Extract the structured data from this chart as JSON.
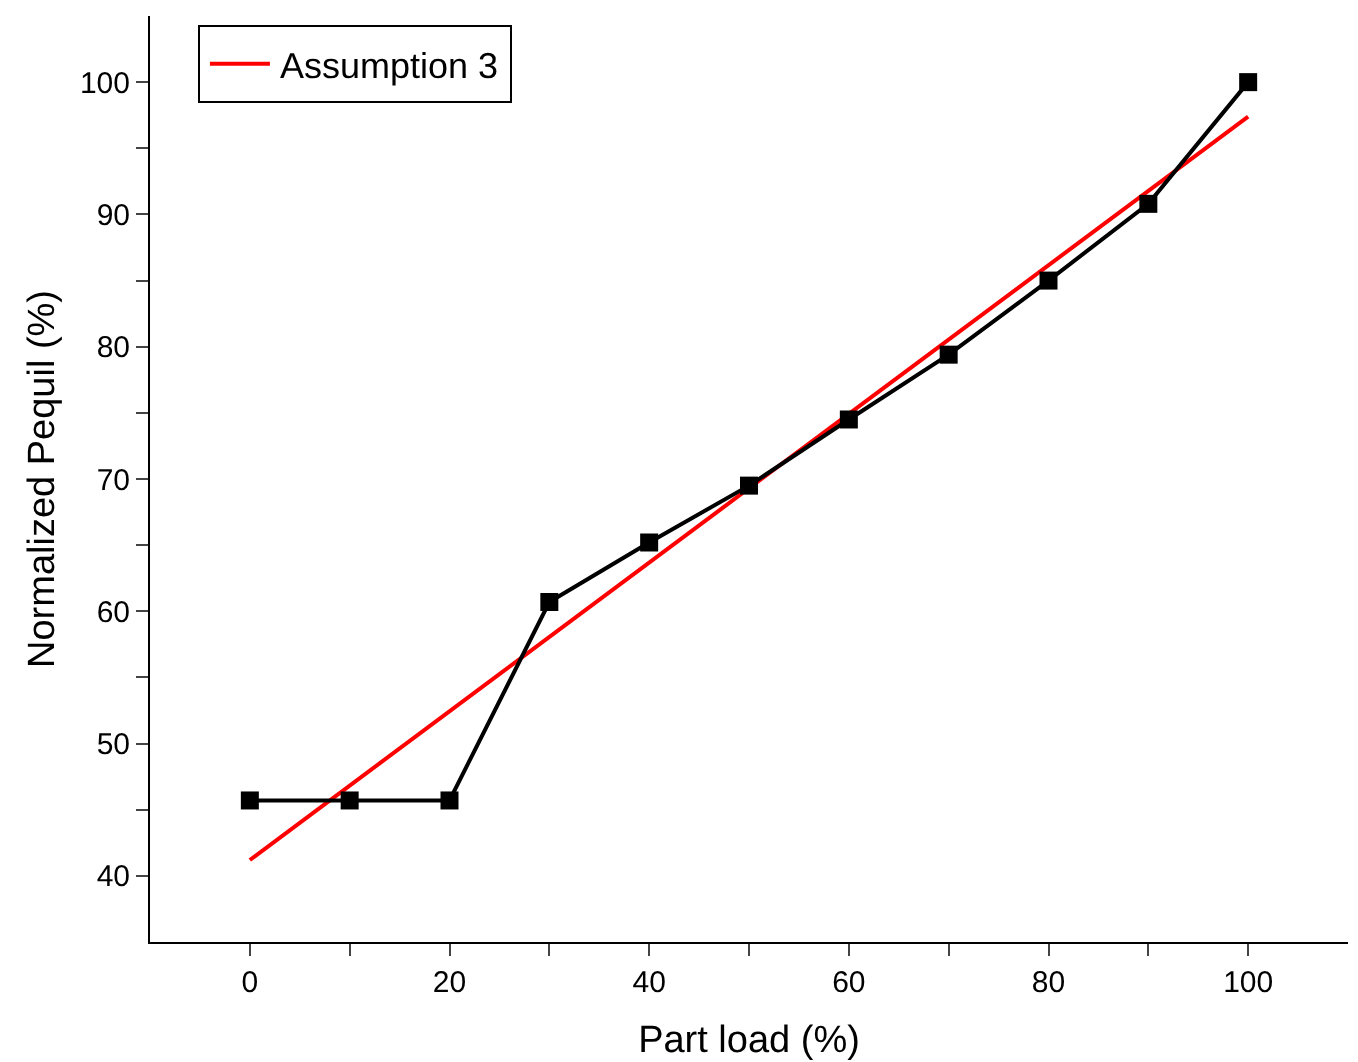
{
  "chart_data": {
    "type": "line",
    "xlabel": "Part load (%)",
    "ylabel": "Normalized Pequil (%)",
    "x": [
      0,
      10,
      20,
      30,
      40,
      50,
      60,
      70,
      80,
      90,
      100
    ],
    "series": [
      {
        "name": "Assumption 3",
        "color": "#ff0000",
        "marker": "none",
        "x": [
          0,
          100
        ],
        "values": [
          41.2,
          97.4
        ]
      },
      {
        "color": "#000000",
        "marker": "square",
        "values": [
          45.7,
          45.7,
          45.7,
          60.7,
          65.2,
          69.5,
          74.5,
          79.4,
          85.0,
          90.8,
          100
        ]
      }
    ],
    "xlim": [
      -10,
      110
    ],
    "ylim": [
      35,
      105
    ],
    "xticks": [
      0,
      {
        "value": 10,
        "label": null
      },
      20,
      {
        "value": 30,
        "label": null
      },
      40,
      {
        "value": 50,
        "label": null
      },
      60,
      {
        "value": 70,
        "label": null
      },
      80,
      {
        "value": 90,
        "label": null
      },
      100
    ],
    "yticks": [
      40,
      {
        "value": 45,
        "label": null
      },
      50,
      {
        "value": 55,
        "label": null
      },
      60,
      {
        "value": 65,
        "label": null
      },
      70,
      {
        "value": 75,
        "label": null
      },
      80,
      {
        "value": 85,
        "label": null
      },
      90,
      {
        "value": 95,
        "label": null
      },
      100
    ],
    "grid": false,
    "legend": "top left",
    "line_style": "solid"
  }
}
